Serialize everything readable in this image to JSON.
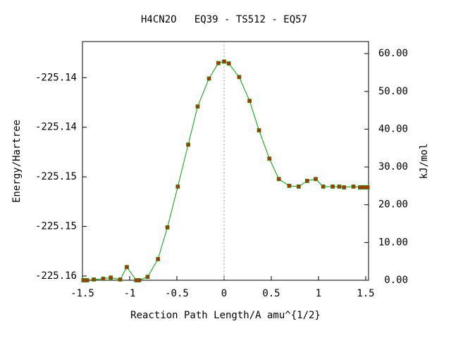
{
  "chart_data": {
    "type": "line",
    "title": "H4CN2O   EQ39 - TS512 - EQ57",
    "xlabel": "Reaction Path Length/A amu^{1/2}",
    "ylabel": "Energy/Hartree",
    "y2label": "kJ/mol",
    "xlim": [
      -1.5,
      1.53
    ],
    "xticks": [
      -1.5,
      -1,
      -0.5,
      0,
      0.5,
      1,
      1.5
    ],
    "ylim": [
      -225.16043,
      -225.13636
    ],
    "yticks": [
      {
        "value": -225.16,
        "label": "-225.16"
      },
      {
        "value": -225.155,
        "label": "-225.15"
      },
      {
        "value": -225.15,
        "label": "-225.15"
      },
      {
        "value": -225.145,
        "label": "-225.14"
      },
      {
        "value": -225.14,
        "label": "-225.14"
      }
    ],
    "y2lim": [
      0,
      63.2
    ],
    "y2ticks": [
      {
        "value": 0,
        "label": "0.00"
      },
      {
        "value": 10,
        "label": "10.00"
      },
      {
        "value": 20,
        "label": "20.00"
      },
      {
        "value": 30,
        "label": "30.00"
      },
      {
        "value": 40,
        "label": "40.00"
      },
      {
        "value": 50,
        "label": "50.00"
      },
      {
        "value": 60,
        "label": "60.00"
      }
    ],
    "x": [
      -1.49,
      -1.47,
      -1.45,
      -1.38,
      -1.28,
      -1.2,
      -1.1,
      -1.03,
      -0.93,
      -0.9,
      -0.81,
      -0.7,
      -0.6,
      -0.49,
      -0.38,
      -0.28,
      -0.16,
      -0.06,
      0.0,
      0.05,
      0.16,
      0.27,
      0.37,
      0.48,
      0.58,
      0.69,
      0.79,
      0.88,
      0.97,
      1.05,
      1.15,
      1.22,
      1.27,
      1.37,
      1.44,
      1.47,
      1.5,
      1.52
    ],
    "series": [
      {
        "axis": "y2",
        "color": "#00a000",
        "marker_color": "#cc2200",
        "values": [
          0,
          0,
          0,
          0.2,
          0.4,
          0.7,
          0.2,
          3.5,
          0,
          0,
          0.9,
          5.6,
          14.0,
          24.8,
          35.9,
          46.0,
          53.4,
          57.5,
          57.9,
          57.4,
          53.8,
          47.5,
          39.7,
          32.2,
          26.8,
          25.0,
          24.8,
          26.3,
          26.8,
          24.8,
          24.8,
          24.8,
          24.6,
          24.8,
          24.6,
          24.6,
          24.6,
          24.6
        ]
      }
    ]
  }
}
